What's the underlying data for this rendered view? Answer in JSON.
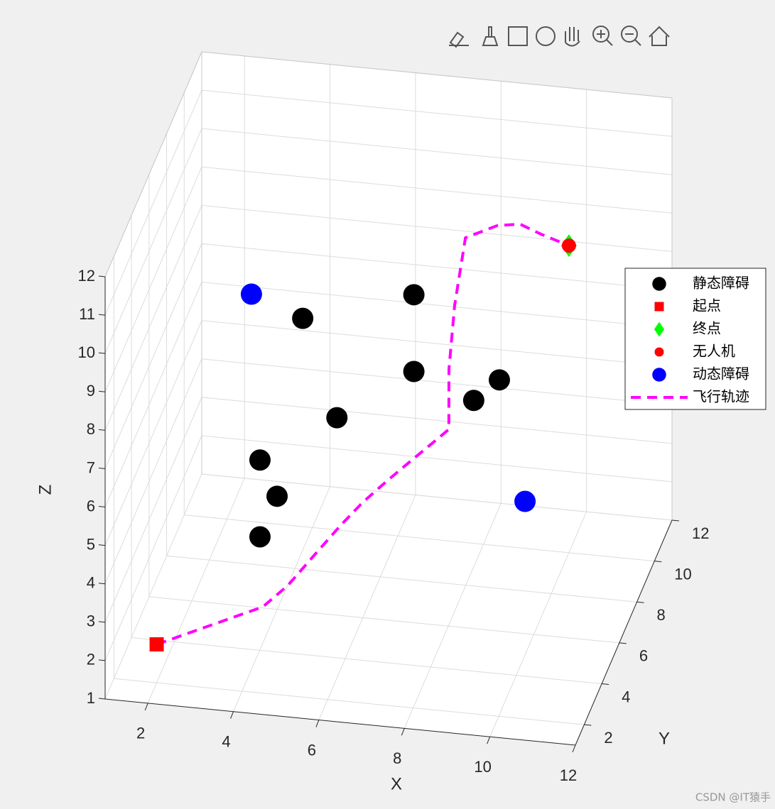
{
  "chart_data": {
    "type": "scatter3d",
    "xlabel": "X",
    "ylabel": "Y",
    "zlabel": "Z",
    "xlim": [
      1,
      12
    ],
    "ylim": [
      1,
      12
    ],
    "zlim": [
      1,
      12
    ],
    "xticks": [
      2,
      4,
      6,
      8,
      10,
      12
    ],
    "yticks": [
      2,
      4,
      6,
      8,
      10,
      12
    ],
    "zticks": [
      1,
      2,
      3,
      4,
      5,
      6,
      7,
      8,
      9,
      10,
      11,
      12
    ],
    "grid": true,
    "legend_position": "east",
    "series": [
      {
        "name": "静态障碍",
        "color": "#000000",
        "marker": "circle",
        "x": [
          4.8,
          7.4,
          7.4,
          9.4,
          8.8,
          5.6,
          3.8,
          4.2,
          3.8
        ],
        "y": [
          5,
          5,
          5,
          5,
          5,
          5,
          5,
          5,
          5
        ],
        "z": [
          9.2,
          10.1,
          8.1,
          8.1,
          7.5,
          6.7,
          5.4,
          4.5,
          3.4
        ]
      },
      {
        "name": "起点",
        "color": "#ff0000",
        "marker": "square",
        "x": [
          2
        ],
        "y": [
          2
        ],
        "z": [
          2
        ]
      },
      {
        "name": "终点",
        "color": "#00ff00",
        "marker": "diamond",
        "x": [
          10
        ],
        "y": [
          10
        ],
        "z": [
          9
        ]
      },
      {
        "name": "无人机",
        "color": "#ff0000",
        "marker": "dot",
        "x": [
          10
        ],
        "y": [
          10
        ],
        "z": [
          9
        ]
      },
      {
        "name": "动态障碍",
        "color": "#0000ff",
        "marker": "circle",
        "x": [
          3.6,
          10
        ],
        "y": [
          5,
          5
        ],
        "z": [
          9.7,
          5
        ]
      },
      {
        "name": "飞行轨迹",
        "color": "#ff00ff",
        "marker": "dashed-line",
        "x": [
          2,
          4.38,
          4.86,
          5.34,
          5.9,
          6.3,
          6.78,
          7.25,
          7.68,
          7.91,
          7.81,
          7.84,
          7.99,
          8.63,
          9.06,
          9.46,
          10
        ],
        "y": [
          2,
          2.5,
          3,
          3.5,
          4,
          4.5,
          5,
          5.5,
          6,
          6.5,
          7,
          7.5,
          8,
          8.5,
          9,
          9.5,
          10
        ],
        "z": [
          2,
          2.97,
          3.31,
          3.84,
          4.47,
          4.83,
          5.19,
          5.51,
          5.78,
          5.85,
          7.14,
          8.54,
          10.05,
          10.17,
          9.99,
          9.5,
          9
        ]
      }
    ]
  },
  "watermark": "CSDN @IT猿手"
}
